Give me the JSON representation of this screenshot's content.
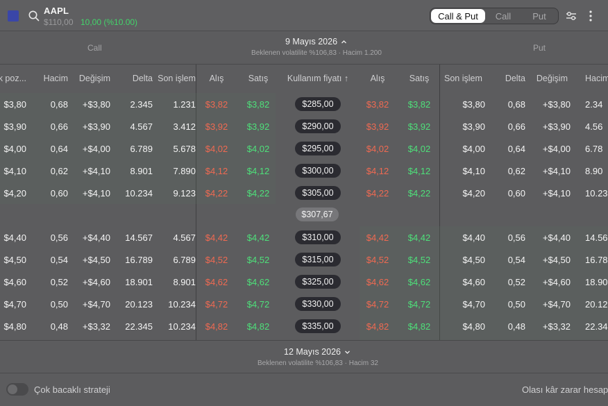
{
  "header": {
    "ticker": "AAPL",
    "price": "$110,00",
    "change": "10,00 (%10.00)",
    "segments": [
      {
        "label": "Call & Put",
        "active": true
      },
      {
        "label": "Call",
        "active": false
      },
      {
        "label": "Put",
        "active": false
      }
    ],
    "icons": [
      "app-square-icon",
      "search-icon",
      "filter-sliders-icon",
      "more-vertical-icon"
    ]
  },
  "expiry_top": {
    "call_label": "Call",
    "put_label": "Put",
    "date": "9 Mayıs 2026",
    "chevron": "chevron-up-icon",
    "subtitle": "Beklenen volatilite %106,83 · Hacim 1.200"
  },
  "columns": {
    "call": [
      "ık poz...",
      "Hacim",
      "Değişim",
      "Delta",
      "Son işlem",
      "Alış",
      "Satış"
    ],
    "strike": "Kullanım fiyatı ↑",
    "put": [
      "Alış",
      "Satış",
      "Son işlem",
      "Delta",
      "Değişim",
      "Hacim"
    ]
  },
  "rows_above": [
    {
      "oi": "$3,80",
      "volume": "0,68",
      "change": "+$3,80",
      "delta": "2.345",
      "last": "1.231",
      "bid": "$3,82",
      "ask": "$3,82",
      "strike": "$285,00",
      "p_bid": "$3,82",
      "p_ask": "$3,82",
      "p_last": "$3,80",
      "p_delta": "0,68",
      "p_change": "+$3,80",
      "p_volume": "2.34"
    },
    {
      "oi": "$3,90",
      "volume": "0,66",
      "change": "+$3,90",
      "delta": "4.567",
      "last": "3.412",
      "bid": "$3,92",
      "ask": "$3,92",
      "strike": "$290,00",
      "p_bid": "$3,92",
      "p_ask": "$3,92",
      "p_last": "$3,90",
      "p_delta": "0,66",
      "p_change": "+$3,90",
      "p_volume": "4.56"
    },
    {
      "oi": "$4,00",
      "volume": "0,64",
      "change": "+$4,00",
      "delta": "6.789",
      "last": "5.678",
      "bid": "$4,02",
      "ask": "$4,02",
      "strike": "$295,00",
      "p_bid": "$4,02",
      "p_ask": "$4,02",
      "p_last": "$4,00",
      "p_delta": "0,64",
      "p_change": "+$4,00",
      "p_volume": "6.78"
    },
    {
      "oi": "$4,10",
      "volume": "0,62",
      "change": "+$4,10",
      "delta": "8.901",
      "last": "7.890",
      "bid": "$4,12",
      "ask": "$4,12",
      "strike": "$300,00",
      "p_bid": "$4,12",
      "p_ask": "$4,12",
      "p_last": "$4,10",
      "p_delta": "0,62",
      "p_change": "+$4,10",
      "p_volume": "8.90"
    },
    {
      "oi": "$4,20",
      "volume": "0,60",
      "change": "+$4,10",
      "delta": "10.234",
      "last": "9.123",
      "bid": "$4,22",
      "ask": "$4,22",
      "strike": "$305,00",
      "p_bid": "$4,22",
      "p_ask": "$4,22",
      "p_last": "$4,20",
      "p_delta": "0,60",
      "p_change": "+$4,10",
      "p_volume": "10.23"
    }
  ],
  "current_price": "$307,67",
  "rows_below": [
    {
      "oi": "$4,40",
      "volume": "0,56",
      "change": "+$4,40",
      "delta": "14.567",
      "last": "4.567",
      "bid": "$4,42",
      "ask": "$4,42",
      "strike": "$310,00",
      "p_bid": "$4,42",
      "p_ask": "$4,42",
      "p_last": "$4,40",
      "p_delta": "0,56",
      "p_change": "+$4,40",
      "p_volume": "14.56"
    },
    {
      "oi": "$4,50",
      "volume": "0,54",
      "change": "+$4,50",
      "delta": "16.789",
      "last": "6.789",
      "bid": "$4,52",
      "ask": "$4,52",
      "strike": "$315,00",
      "p_bid": "$4,52",
      "p_ask": "$4,52",
      "p_last": "$4,50",
      "p_delta": "0,54",
      "p_change": "+$4,50",
      "p_volume": "16.78"
    },
    {
      "oi": "$4,60",
      "volume": "0,52",
      "change": "+$4,60",
      "delta": "18.901",
      "last": "8.901",
      "bid": "$4,62",
      "ask": "$4,62",
      "strike": "$325,00",
      "p_bid": "$4,62",
      "p_ask": "$4,62",
      "p_last": "$4,60",
      "p_delta": "0,52",
      "p_change": "+$4,60",
      "p_volume": "18.90"
    },
    {
      "oi": "$4,70",
      "volume": "0,50",
      "change": "+$4,70",
      "delta": "20.123",
      "last": "10.234",
      "bid": "$4,72",
      "ask": "$4,72",
      "strike": "$330,00",
      "p_bid": "$4,72",
      "p_ask": "$4,72",
      "p_last": "$4,70",
      "p_delta": "0,50",
      "p_change": "+$4,70",
      "p_volume": "20.12"
    },
    {
      "oi": "$4,80",
      "volume": "0,48",
      "change": "+$3,32",
      "delta": "22.345",
      "last": "10.234",
      "bid": "$4,82",
      "ask": "$4,82",
      "strike": "$335,00",
      "p_bid": "$4,82",
      "p_ask": "$4,82",
      "p_last": "$4,80",
      "p_delta": "0,48",
      "p_change": "+$3,32",
      "p_volume": "22.34"
    }
  ],
  "expiry_bottom": {
    "date": "12 Mayıs 2026",
    "chevron": "chevron-down-icon",
    "subtitle": "Beklenen volatilite %106,83 · Hacim 32"
  },
  "footer": {
    "strategy_label": "Çok bacaklı strateji",
    "pnl_label": "Olası kâr zarar hesapl"
  },
  "colors": {
    "background": "#5c5c5e",
    "bid_red": "#f06a52",
    "ask_green": "#4ee07a",
    "change_green": "#43d46a",
    "strike_pill": "#2b2b31",
    "app_square": "#3a46a8"
  }
}
